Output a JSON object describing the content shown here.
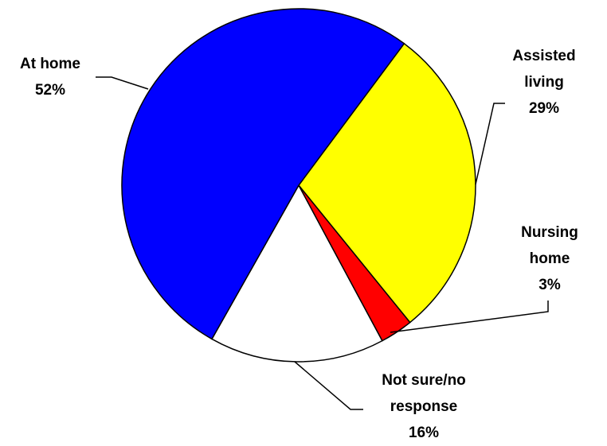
{
  "chart_data": {
    "type": "pie",
    "categories": [
      "At home",
      "Assisted living",
      "Nursing home",
      "Not sure/no response"
    ],
    "values": [
      52,
      29,
      3,
      16
    ],
    "value_labels": [
      "52%",
      "29%",
      "3%",
      "16%"
    ],
    "colors": [
      "#0000ff",
      "#ffff00",
      "#ff0000",
      "#ffffff"
    ]
  }
}
